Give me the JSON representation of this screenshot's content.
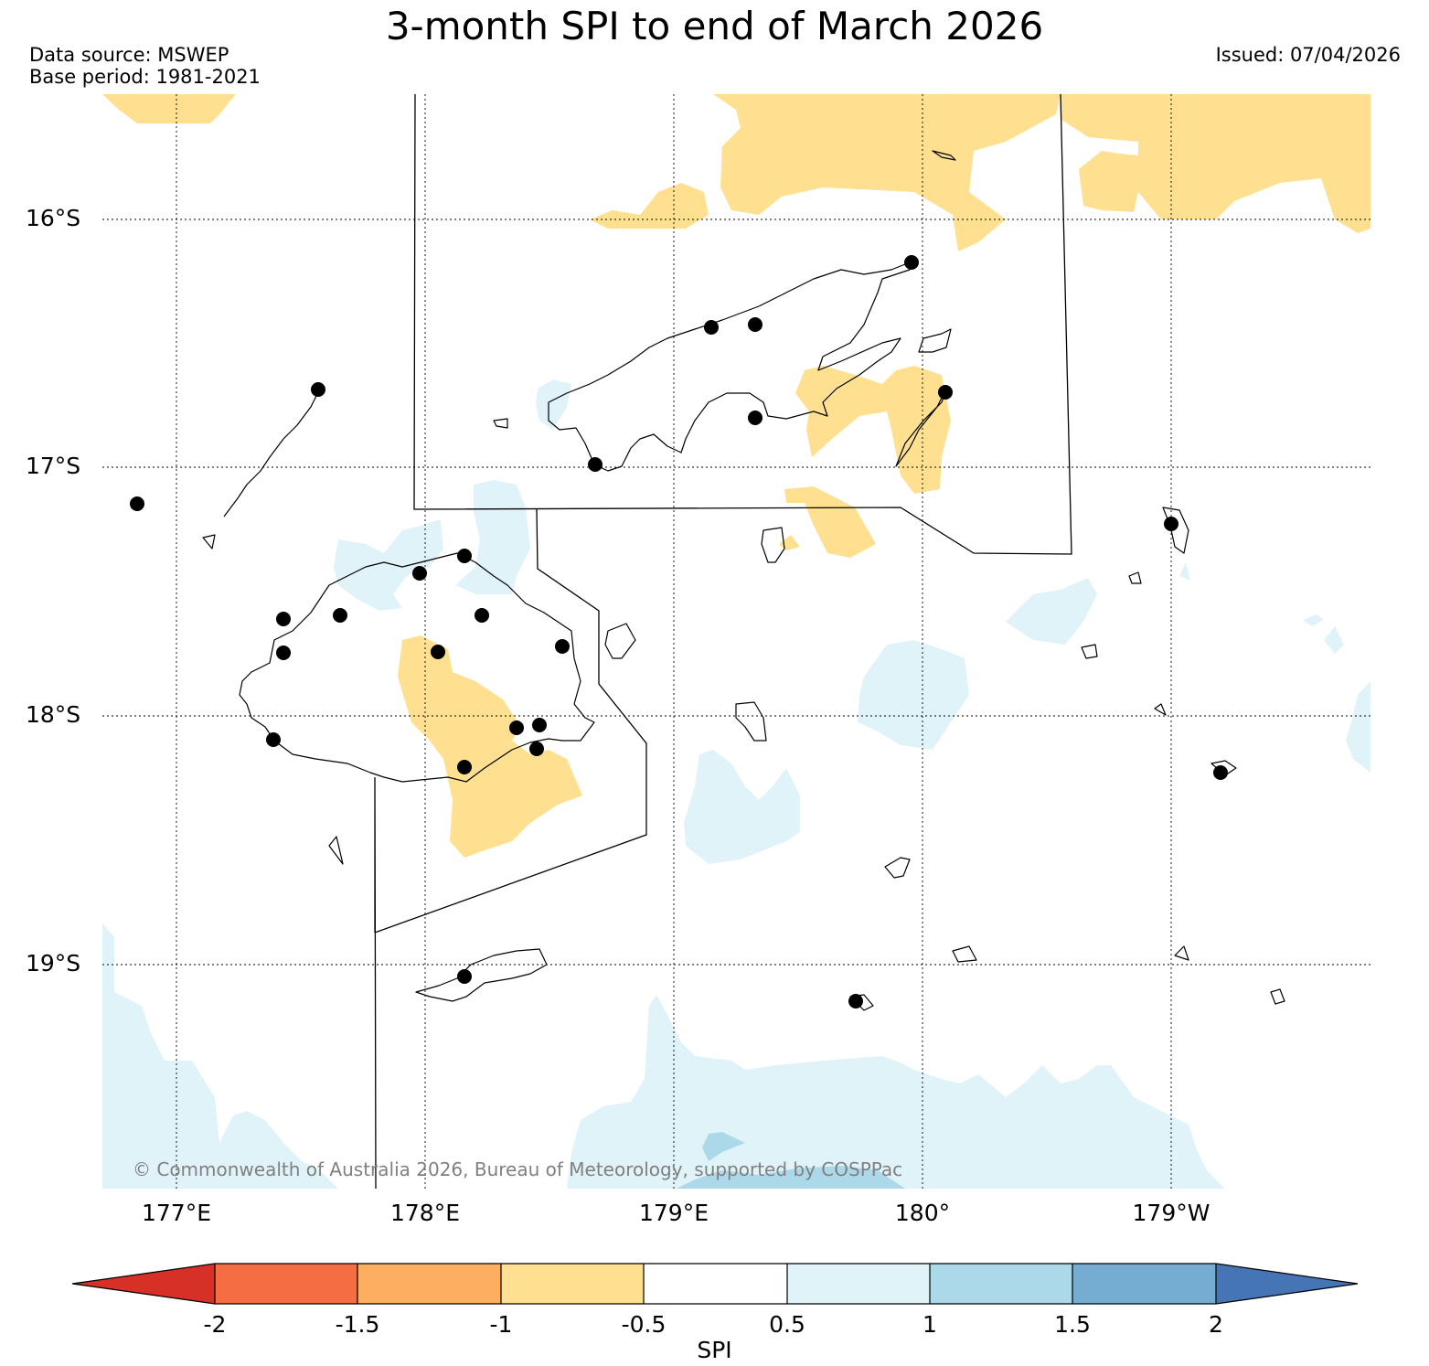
{
  "title": "3-month SPI to end of March 2026",
  "data_source": "Data source: MSWEP",
  "base_period": "Base period: 1981-2021",
  "issued": "Issued: 07/04/2026",
  "copyright": "© Commonwealth of Australia 2026, Bureau of Meteorology, supported by COSPPac",
  "latitude_labels": [
    "16°S",
    "17°S",
    "18°S",
    "19°S"
  ],
  "longitude_labels": [
    "177°E",
    "178°E",
    "179°E",
    "180°",
    "179°W"
  ],
  "colorbar": {
    "label": "SPI",
    "ticks": [
      "-2",
      "-1.5",
      "-1",
      "-0.5",
      "0.5",
      "1",
      "1.5",
      "2"
    ],
    "colors": [
      "#d73027",
      "#f46d43",
      "#fdae61",
      "#fee090",
      "#ffffff",
      "#e0f3f8",
      "#abd9e9",
      "#74add1",
      "#4575b4"
    ]
  },
  "map_colors": {
    "dry": "#fee090",
    "wet_light": "#e0f3f8",
    "wet_medium": "#abd9e9"
  }
}
